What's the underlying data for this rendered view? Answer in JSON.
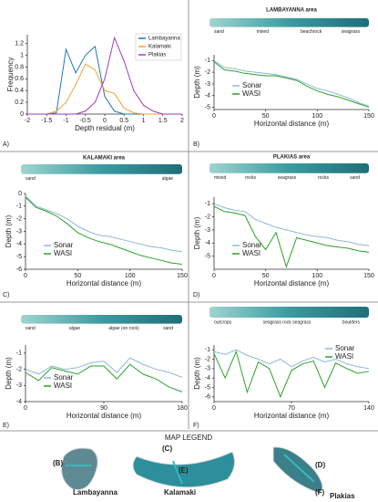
{
  "chart_data": [
    {
      "type": "line",
      "panel": "A)",
      "xlabel": "Depth residual (m)",
      "ylabel": "Frequency",
      "legend": "upper right",
      "x": [
        -2,
        -1.75,
        -1.5,
        -1.25,
        -1,
        -0.75,
        -0.5,
        -0.25,
        0,
        0.25,
        0.5,
        0.75,
        1,
        1.25,
        1.5,
        1.75,
        2
      ],
      "series": [
        {
          "name": "Lambayanna",
          "color": "#1f77b4",
          "values": [
            0,
            0,
            0,
            0.02,
            1.1,
            0.7,
            1.0,
            1.15,
            0.3,
            0.05,
            0,
            0,
            0,
            0,
            0,
            0,
            0
          ]
        },
        {
          "name": "Kalamaki",
          "color": "#f0a030",
          "values": [
            0,
            0,
            0,
            0.05,
            0.2,
            0.5,
            0.85,
            0.75,
            0.4,
            0.35,
            0.1,
            0.02,
            0,
            0,
            0,
            0,
            0
          ]
        },
        {
          "name": "Plakias",
          "color": "#9b3fb5",
          "values": [
            0,
            0,
            0,
            0,
            0,
            0,
            0.05,
            0.2,
            0.6,
            1.3,
            0.9,
            0.4,
            0.15,
            0.05,
            0,
            0,
            0
          ]
        }
      ],
      "xlim": [
        -2,
        2
      ],
      "xticks": [
        -2,
        -1.5,
        -1,
        -0.5,
        0,
        0.5,
        1,
        1.5,
        2
      ],
      "ylim": [
        0,
        1.35
      ],
      "yticks": [
        0,
        0.2,
        0.4,
        0.6,
        0.8,
        1,
        1.2
      ]
    },
    {
      "type": "line",
      "panel": "B)",
      "title": "LAMBAYANNA area",
      "strip_labels": [
        "sand",
        "mixed",
        "beachrock",
        "seagrass"
      ],
      "xlabel": "Horizontal distance (m)",
      "ylabel": "Depth (m)",
      "legend": "lower left",
      "x": [
        0,
        10,
        20,
        30,
        40,
        50,
        60,
        70,
        80,
        90,
        100,
        110,
        120,
        130,
        140,
        150
      ],
      "series": [
        {
          "name": "Sonar",
          "color": "#8fb8d8",
          "values": [
            -1.0,
            -1.6,
            -1.7,
            -1.9,
            -2.0,
            -2.1,
            -2.2,
            -2.4,
            -2.6,
            -3.0,
            -3.4,
            -3.6,
            -3.9,
            -4.2,
            -4.6,
            -4.9
          ]
        },
        {
          "name": "WASI",
          "color": "#2ca02c",
          "values": [
            -1.1,
            -1.8,
            -1.9,
            -2.1,
            -2.2,
            -2.3,
            -2.3,
            -2.5,
            -2.7,
            -3.2,
            -3.6,
            -3.9,
            -4.1,
            -4.4,
            -4.7,
            -5.0
          ]
        }
      ],
      "xlim": [
        0,
        150
      ],
      "xticks": [
        0,
        50,
        100,
        150
      ],
      "ylim": [
        -5.2,
        -0.5
      ],
      "yticks": [
        -1,
        -2,
        -3,
        -4,
        -5
      ]
    },
    {
      "type": "line",
      "panel": "C)",
      "title": "KALAMAKI area",
      "strip_labels": [
        "sand",
        "algae"
      ],
      "xlabel": "Horizontal distance (m)",
      "ylabel": "Depth (m)",
      "legend": "lower left",
      "x": [
        0,
        10,
        20,
        30,
        40,
        50,
        60,
        70,
        80,
        90,
        100,
        110,
        120,
        130,
        140,
        150
      ],
      "series": [
        {
          "name": "Sonar",
          "color": "#8fb8d8",
          "values": [
            -0.2,
            -1.0,
            -1.3,
            -1.6,
            -2.0,
            -2.6,
            -3.0,
            -3.3,
            -3.4,
            -3.6,
            -3.8,
            -4.0,
            -4.2,
            -4.3,
            -4.5,
            -4.6
          ]
        },
        {
          "name": "WASI",
          "color": "#2ca02c",
          "values": [
            -0.3,
            -1.1,
            -1.4,
            -1.8,
            -2.4,
            -3.1,
            -3.5,
            -3.8,
            -4.0,
            -4.3,
            -4.6,
            -4.9,
            -5.1,
            -5.3,
            -5.5,
            -5.6
          ]
        }
      ],
      "xlim": [
        0,
        150
      ],
      "xticks": [
        0,
        50,
        100,
        150
      ],
      "ylim": [
        -6,
        0
      ],
      "yticks": [
        0,
        -1,
        -2,
        -3,
        -4,
        -5,
        -6
      ]
    },
    {
      "type": "line",
      "panel": "D)",
      "title": "PLAKIAS area",
      "strip_labels": [
        "mixed",
        "rocks",
        "seagrass",
        "rocks",
        "sand"
      ],
      "xlabel": "Horizontal distance (m)",
      "ylabel": "Depth (m)",
      "legend": "lower left",
      "x": [
        0,
        10,
        20,
        30,
        40,
        50,
        60,
        70,
        80,
        90,
        100,
        110,
        120,
        130,
        140,
        150
      ],
      "series": [
        {
          "name": "Sonar",
          "color": "#8fb8d8",
          "values": [
            -1.0,
            -1.3,
            -1.5,
            -1.6,
            -2.2,
            -2.5,
            -2.8,
            -3.0,
            -3.2,
            -3.4,
            -3.5,
            -3.6,
            -3.8,
            -3.9,
            -4.1,
            -4.2
          ]
        },
        {
          "name": "WASI",
          "color": "#2ca02c",
          "values": [
            -1.2,
            -1.6,
            -1.7,
            -1.9,
            -3.5,
            -4.5,
            -3.2,
            -5.8,
            -3.6,
            -3.8,
            -4.0,
            -4.2,
            -4.3,
            -4.4,
            -4.6,
            -4.7
          ]
        }
      ],
      "xlim": [
        0,
        150
      ],
      "xticks": [
        0,
        50,
        100,
        150
      ],
      "ylim": [
        -6,
        -0.5
      ],
      "yticks": [
        -1,
        -2,
        -3,
        -4,
        -5
      ]
    },
    {
      "type": "line",
      "panel": "E)",
      "strip_labels": [
        "sand",
        "algae",
        "algae (on rock)",
        "sand"
      ],
      "xlabel": "Horizontal distance (m)",
      "ylabel": "Depth (m)",
      "legend": "lower left",
      "x": [
        0,
        15,
        30,
        45,
        60,
        75,
        90,
        105,
        120,
        135,
        150,
        165,
        180
      ],
      "series": [
        {
          "name": "Sonar",
          "color": "#8fb8d8",
          "values": [
            -2.0,
            -2.3,
            -1.8,
            -2.0,
            -1.9,
            -1.6,
            -1.5,
            -2.2,
            -1.3,
            -1.7,
            -2.0,
            -2.2,
            -2.5
          ]
        },
        {
          "name": "WASI",
          "color": "#2ca02c",
          "values": [
            -2.2,
            -2.7,
            -1.9,
            -2.1,
            -2.3,
            -1.8,
            -1.8,
            -2.6,
            -1.7,
            -2.3,
            -2.6,
            -3.1,
            -3.4
          ]
        }
      ],
      "xlim": [
        0,
        180
      ],
      "xticks": [
        0,
        90,
        180
      ],
      "ylim": [
        -4,
        -0.5
      ],
      "yticks": [
        -1,
        -2,
        -3,
        -4
      ]
    },
    {
      "type": "line",
      "panel": "F)",
      "strip_labels": [
        "outcrops",
        "seagrass rock seagrass",
        "boulders"
      ],
      "xlabel": "Horizontal distance (m)",
      "ylabel": "Depth (m)",
      "legend": "upper right",
      "x": [
        0,
        10,
        20,
        30,
        40,
        50,
        60,
        70,
        80,
        90,
        100,
        110,
        120,
        130,
        140
      ],
      "series": [
        {
          "name": "Sonar",
          "color": "#8fb8d8",
          "values": [
            -1.2,
            -1.5,
            -1.0,
            -1.6,
            -2.0,
            -2.5,
            -2.0,
            -2.8,
            -2.2,
            -1.8,
            -2.3,
            -2.0,
            -2.5,
            -2.8,
            -3.0
          ]
        },
        {
          "name": "WASI",
          "color": "#2ca02c",
          "values": [
            -1.4,
            -4.0,
            -1.2,
            -5.5,
            -2.3,
            -3.0,
            -6.0,
            -3.2,
            -2.5,
            -2.2,
            -5.0,
            -2.4,
            -3.0,
            -3.5,
            -3.3
          ]
        }
      ],
      "xlim": [
        0,
        140
      ],
      "xticks": [
        0,
        70,
        140
      ],
      "ylim": [
        -6.5,
        -0.5
      ],
      "yticks": [
        -1,
        -2,
        -3,
        -4,
        -5,
        -6
      ]
    }
  ],
  "map_legend": {
    "title": "MAP LEGEND",
    "markers": [
      "(B)",
      "(C)",
      "(E)",
      "(D)",
      "(F)"
    ],
    "sites": [
      "Lambayanna",
      "Kalamaki",
      "Plakias"
    ]
  }
}
